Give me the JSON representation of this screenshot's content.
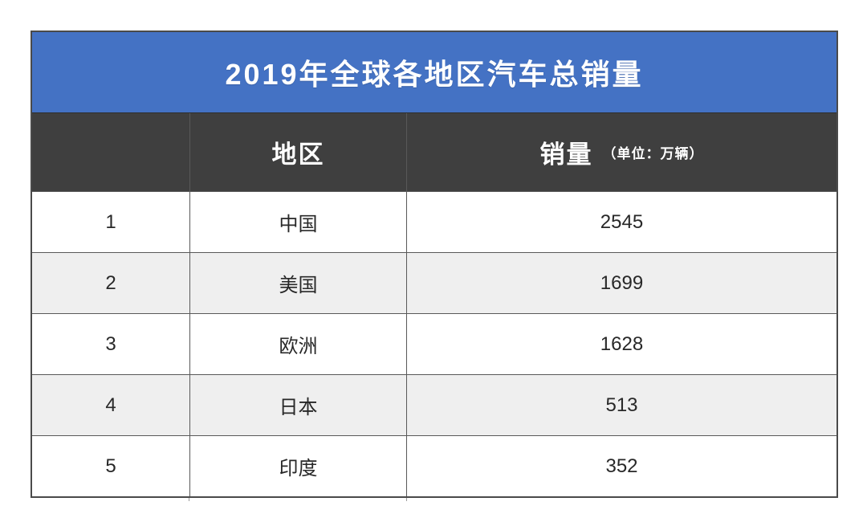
{
  "table": {
    "title": "2019年全球各地区汽车总销量",
    "header": {
      "rank_label": "",
      "region_label": "地区",
      "sales_label": "销量",
      "sales_unit": "（单位：万辆）"
    },
    "rows": [
      {
        "rank": "1",
        "region": "中国",
        "sales": "2545"
      },
      {
        "rank": "2",
        "region": "美国",
        "sales": "1699"
      },
      {
        "rank": "3",
        "region": "欧洲",
        "sales": "1628"
      },
      {
        "rank": "4",
        "region": "日本",
        "sales": "513"
      },
      {
        "rank": "5",
        "region": "印度",
        "sales": "352"
      }
    ],
    "colors": {
      "title_bg": "#4472c4",
      "header_bg": "#3f3f3f",
      "row_bg": "#ffffff",
      "row_alt_bg": "#efefef",
      "grid_border": "#595959",
      "outer_border": "#4a4a4a",
      "title_text": "#ffffff",
      "header_text": "#ffffff",
      "cell_text": "#282828"
    }
  },
  "chart_data": {
    "type": "table",
    "title": "2019年全球各地区汽车总销量",
    "columns": [
      "",
      "地区",
      "销量"
    ],
    "unit": "万辆",
    "categories": [
      "中国",
      "美国",
      "欧洲",
      "日本",
      "印度"
    ],
    "values": [
      2545,
      1699,
      1628,
      513,
      352
    ],
    "ranks": [
      1,
      2,
      3,
      4,
      5
    ],
    "layout_hints": {
      "zebra_striping": true,
      "title_position": "top",
      "grid": true
    }
  }
}
